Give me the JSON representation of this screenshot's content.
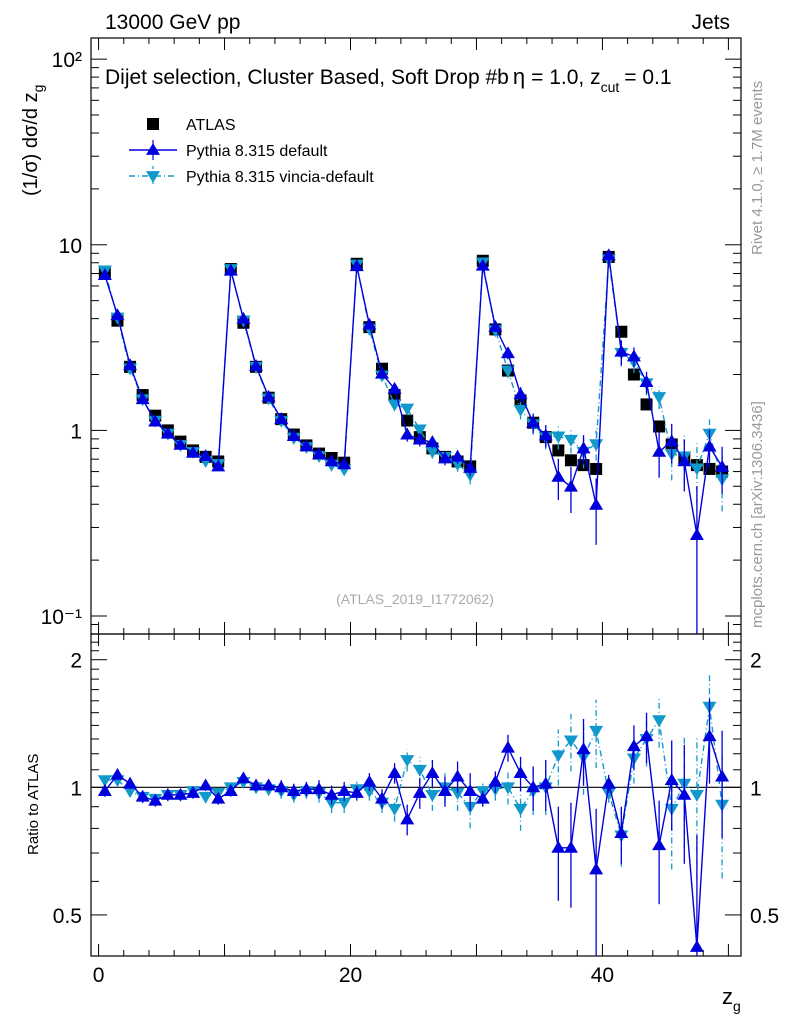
{
  "header": {
    "energy_label": "13000 GeV pp",
    "category_label": "Jets"
  },
  "side_text": {
    "rivet": "Rivet 4.1.0, ≥ 1.7M events",
    "mcplots": "mcplots.cern.ch [arXiv:1306.3436]"
  },
  "colors": {
    "data": "#000000",
    "pythia_default": "#0000dd",
    "pythia_vincia": "#1199cc",
    "ref_label": "#aaaaaa"
  },
  "chart_data": {
    "type": "scatter",
    "title": "Dijet selection, Cluster Based, Soft Drop #b",
    "title_parts": {
      "beta_eq": "= 1.0, z",
      "cut_sub": "cut",
      "cut_eq": "= 0.1"
    },
    "reference_id": "(ATLAS_2019_I1772062)",
    "xlabel": "z",
    "xlabel_sub": "g",
    "ylabel_top": "(1/σ) dσ/d z",
    "ylabel_top_sub": "g",
    "ylabel_ratio": "Ratio to ATLAS",
    "xlim": [
      -0.6,
      51
    ],
    "ylim_top": [
      0.08,
      130
    ],
    "ylim_ratio": [
      0.4,
      2.3
    ],
    "x_ticks": [
      0,
      20,
      40
    ],
    "x_tick_labels": [
      "0",
      "20",
      "40"
    ],
    "y_ticks_top": [
      0.1,
      1,
      10,
      100
    ],
    "y_tick_labels_top": [
      "10⁻¹",
      "1",
      "10",
      "10²"
    ],
    "y_ticks_ratio": [
      0.5,
      1,
      2
    ],
    "y_tick_labels_ratio": [
      "0.5",
      "1",
      "2"
    ],
    "x": [
      0.5,
      1.5,
      2.5,
      3.5,
      4.5,
      5.5,
      6.5,
      7.5,
      8.5,
      9.5,
      10.5,
      11.5,
      12.5,
      13.5,
      14.5,
      15.5,
      16.5,
      17.5,
      18.5,
      19.5,
      20.5,
      21.5,
      22.5,
      23.5,
      24.5,
      25.5,
      26.5,
      27.5,
      28.5,
      29.5,
      30.5,
      31.5,
      32.5,
      33.5,
      34.5,
      35.5,
      36.5,
      37.5,
      38.5,
      39.5,
      40.5,
      41.5,
      42.5,
      43.5,
      44.5,
      45.5,
      46.5,
      47.5,
      48.5,
      49.5
    ],
    "series": [
      {
        "name": "ATLAS",
        "marker": "square",
        "values": [
          7.0,
          3.9,
          2.2,
          1.55,
          1.2,
          1.0,
          0.87,
          0.78,
          0.72,
          0.68,
          7.4,
          3.8,
          2.2,
          1.5,
          1.15,
          0.95,
          0.83,
          0.75,
          0.71,
          0.67,
          7.9,
          3.6,
          2.15,
          1.55,
          1.13,
          0.92,
          0.8,
          0.72,
          0.68,
          0.64,
          8.2,
          3.5,
          2.1,
          1.45,
          1.1,
          0.92,
          0.78,
          0.69,
          0.65,
          0.62,
          8.6,
          3.4,
          2.0,
          1.38,
          1.05,
          0.84,
          0.71,
          0.65,
          0.62,
          0.6
        ],
        "errors": [
          0.1,
          0.06,
          0.04,
          0.03,
          0.02,
          0.02,
          0.02,
          0.02,
          0.02,
          0.02,
          0.1,
          0.06,
          0.04,
          0.03,
          0.02,
          0.02,
          0.02,
          0.02,
          0.02,
          0.02,
          0.12,
          0.06,
          0.04,
          0.03,
          0.03,
          0.03,
          0.03,
          0.03,
          0.03,
          0.03,
          0.15,
          0.08,
          0.06,
          0.06,
          0.06,
          0.06,
          0.06,
          0.06,
          0.06,
          0.06,
          0.2,
          0.15,
          0.12,
          0.12,
          0.12,
          0.12,
          0.12,
          0.12,
          0.12,
          0.12
        ]
      },
      {
        "name": "Pythia 8.315 default",
        "marker": "triangle-up",
        "line": "solid",
        "ratio": [
          0.98,
          1.07,
          1.02,
          0.95,
          0.93,
          0.96,
          0.96,
          0.97,
          1.01,
          0.94,
          0.98,
          1.05,
          1.01,
          1.01,
          1.0,
          0.98,
          0.99,
          0.99,
          0.96,
          0.98,
          0.97,
          1.03,
          0.94,
          1.08,
          0.84,
          0.97,
          1.08,
          0.98,
          1.06,
          0.98,
          0.94,
          1.03,
          1.24,
          1.08,
          1.0,
          1.02,
          0.72,
          0.72,
          1.23,
          0.64,
          1.02,
          0.78,
          1.25,
          1.32,
          0.73,
          1.04,
          0.96,
          0.42,
          1.32,
          1.06
        ],
        "ratio_err": [
          0.03,
          0.03,
          0.03,
          0.03,
          0.03,
          0.03,
          0.03,
          0.03,
          0.03,
          0.03,
          0.03,
          0.03,
          0.03,
          0.03,
          0.04,
          0.04,
          0.04,
          0.05,
          0.05,
          0.05,
          0.04,
          0.05,
          0.05,
          0.06,
          0.07,
          0.08,
          0.08,
          0.08,
          0.09,
          0.1,
          0.04,
          0.06,
          0.09,
          0.1,
          0.12,
          0.14,
          0.18,
          0.2,
          0.22,
          0.25,
          0.05,
          0.12,
          0.15,
          0.18,
          0.2,
          0.25,
          0.3,
          0.35,
          0.3,
          0.3
        ]
      },
      {
        "name": "Pythia 8.315 vincia-default",
        "marker": "triangle-down",
        "line": "dashdot",
        "ratio": [
          1.04,
          1.04,
          0.98,
          0.95,
          0.94,
          0.96,
          0.96,
          0.98,
          0.95,
          0.97,
          1.0,
          1.03,
          1.0,
          0.99,
          0.98,
          0.96,
          0.98,
          0.97,
          0.92,
          0.92,
          0.99,
          0.98,
          0.92,
          0.89,
          1.16,
          1.1,
          0.96,
          1.0,
          0.97,
          0.9,
          0.98,
          0.99,
          1.0,
          0.89,
          0.98,
          1.0,
          1.19,
          1.29,
          1.18,
          1.36,
          0.97,
          0.77,
          1.17,
          1.3,
          1.44,
          0.89,
          1.02,
          0.96,
          1.55,
          0.91
        ],
        "ratio_err": [
          0.03,
          0.03,
          0.03,
          0.03,
          0.03,
          0.03,
          0.03,
          0.03,
          0.03,
          0.03,
          0.03,
          0.03,
          0.03,
          0.03,
          0.04,
          0.04,
          0.04,
          0.05,
          0.05,
          0.05,
          0.04,
          0.05,
          0.05,
          0.06,
          0.07,
          0.08,
          0.08,
          0.08,
          0.09,
          0.1,
          0.04,
          0.06,
          0.09,
          0.1,
          0.12,
          0.14,
          0.18,
          0.2,
          0.22,
          0.25,
          0.05,
          0.12,
          0.15,
          0.18,
          0.2,
          0.25,
          0.3,
          0.35,
          0.3,
          0.3
        ]
      }
    ],
    "legend": [
      {
        "label": "ATLAS",
        "key": "atlas"
      },
      {
        "label": "Pythia 8.315 default",
        "key": "default"
      },
      {
        "label": "Pythia 8.315 vincia-default",
        "key": "vincia"
      }
    ]
  }
}
